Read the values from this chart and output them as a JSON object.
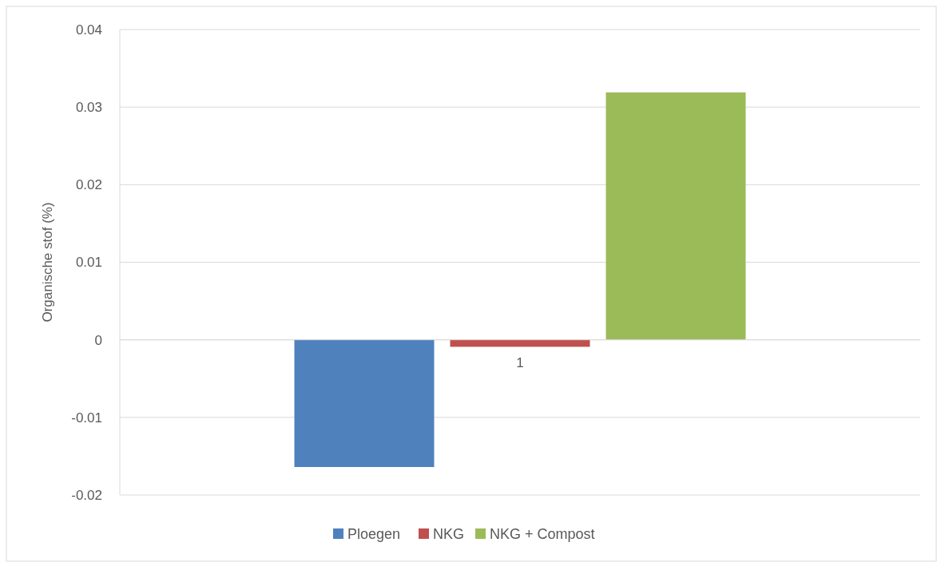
{
  "chart_data": {
    "type": "bar",
    "ylabel": "Organische stof (%)",
    "categories": [
      "1"
    ],
    "series": [
      {
        "name": "Ploegen",
        "color": "#4f81bd",
        "values": [
          -0.0164
        ]
      },
      {
        "name": "NKG",
        "color": "#c0504d",
        "values": [
          -0.0009
        ]
      },
      {
        "name": "NKG + Compost",
        "color": "#9bbb59",
        "values": [
          0.0319
        ]
      }
    ],
    "ylim": [
      -0.02,
      0.04
    ],
    "yticks": [
      {
        "value": -0.02,
        "label": "-0.02"
      },
      {
        "value": -0.01,
        "label": "-0.01"
      },
      {
        "value": 0,
        "label": "0"
      },
      {
        "value": 0.01,
        "label": "0.01"
      },
      {
        "value": 0.02,
        "label": "0.02"
      },
      {
        "value": 0.03,
        "label": "0.03"
      },
      {
        "value": 0.04,
        "label": "0.04"
      }
    ],
    "grid": "y",
    "legend": "bottom"
  }
}
